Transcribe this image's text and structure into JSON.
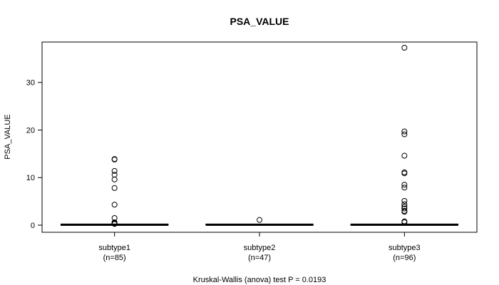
{
  "chart_data": {
    "type": "boxplot",
    "title": "PSA_VALUE",
    "ylabel": "PSA_VALUE",
    "xlabel": "",
    "ylim": [
      -1.5,
      38.5
    ],
    "yticks": [
      0,
      10,
      20,
      30
    ],
    "grid": false,
    "categories": [
      {
        "name": "subtype1",
        "n_label": "(n=85)"
      },
      {
        "name": "subtype2",
        "n_label": "(n=47)"
      },
      {
        "name": "subtype3",
        "n_label": "(n=96)"
      }
    ],
    "series": [
      {
        "category": "subtype1",
        "median": 0.1,
        "q1": 0.05,
        "q3": 0.15,
        "outliers": [
          13.9,
          13.8,
          11.4,
          10.6,
          9.6,
          7.8,
          4.3,
          1.5,
          0.6,
          0.45,
          0.35,
          0.25
        ]
      },
      {
        "category": "subtype2",
        "median": 0.1,
        "q1": 0.05,
        "q3": 0.15,
        "outliers": [
          1.1
        ]
      },
      {
        "category": "subtype3",
        "median": 0.1,
        "q1": 0.05,
        "q3": 0.15,
        "outliers": [
          37.3,
          19.7,
          19.1,
          14.6,
          11.1,
          10.9,
          8.5,
          7.9,
          5.1,
          4.4,
          3.9,
          3.5,
          3.0,
          2.8,
          0.8,
          0.6
        ]
      }
    ],
    "footnote": "Kruskal-Wallis (anova) test P = 0.0193"
  }
}
